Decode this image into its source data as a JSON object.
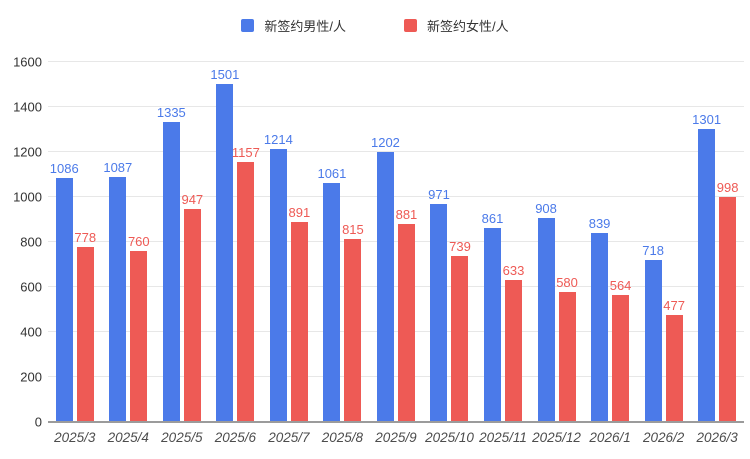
{
  "legend": [
    {
      "label": "新签约男性/人",
      "color": "#4b7ae9"
    },
    {
      "label": "新签约女性/人",
      "color": "#ee5a55"
    }
  ],
  "chart_data": {
    "type": "bar",
    "title": "",
    "xlabel": "",
    "ylabel": "",
    "categories": [
      "2025/3",
      "2025/4",
      "2025/5",
      "2025/6",
      "2025/7",
      "2025/8",
      "2025/9",
      "2025/10",
      "2025/11",
      "2025/12",
      "2026/1",
      "2026/2",
      "2026/3"
    ],
    "series": [
      {
        "name": "新签约男性/人",
        "color": "#4b7ae9",
        "values": [
          1086,
          1087,
          1335,
          1501,
          1214,
          1061,
          1202,
          971,
          861,
          908,
          839,
          718,
          1301
        ]
      },
      {
        "name": "新签约女性/人",
        "color": "#ee5a55",
        "values": [
          778,
          760,
          947,
          1157,
          891,
          815,
          881,
          739,
          633,
          580,
          564,
          477,
          998
        ]
      }
    ],
    "ylim": [
      0,
      1600
    ],
    "ytick_interval": 200,
    "yticks": [
      0,
      200,
      400,
      600,
      800,
      1000,
      1200,
      1400,
      1600
    ],
    "grid": true,
    "legend_position": "top",
    "value_labels": true
  },
  "style": {
    "gridline_color": "#e7e7e7",
    "axis_line_color": "#9b9b9b",
    "y_label_color": "#333333",
    "x_label_color": "#4d4d4d",
    "background": "#ffffff"
  }
}
